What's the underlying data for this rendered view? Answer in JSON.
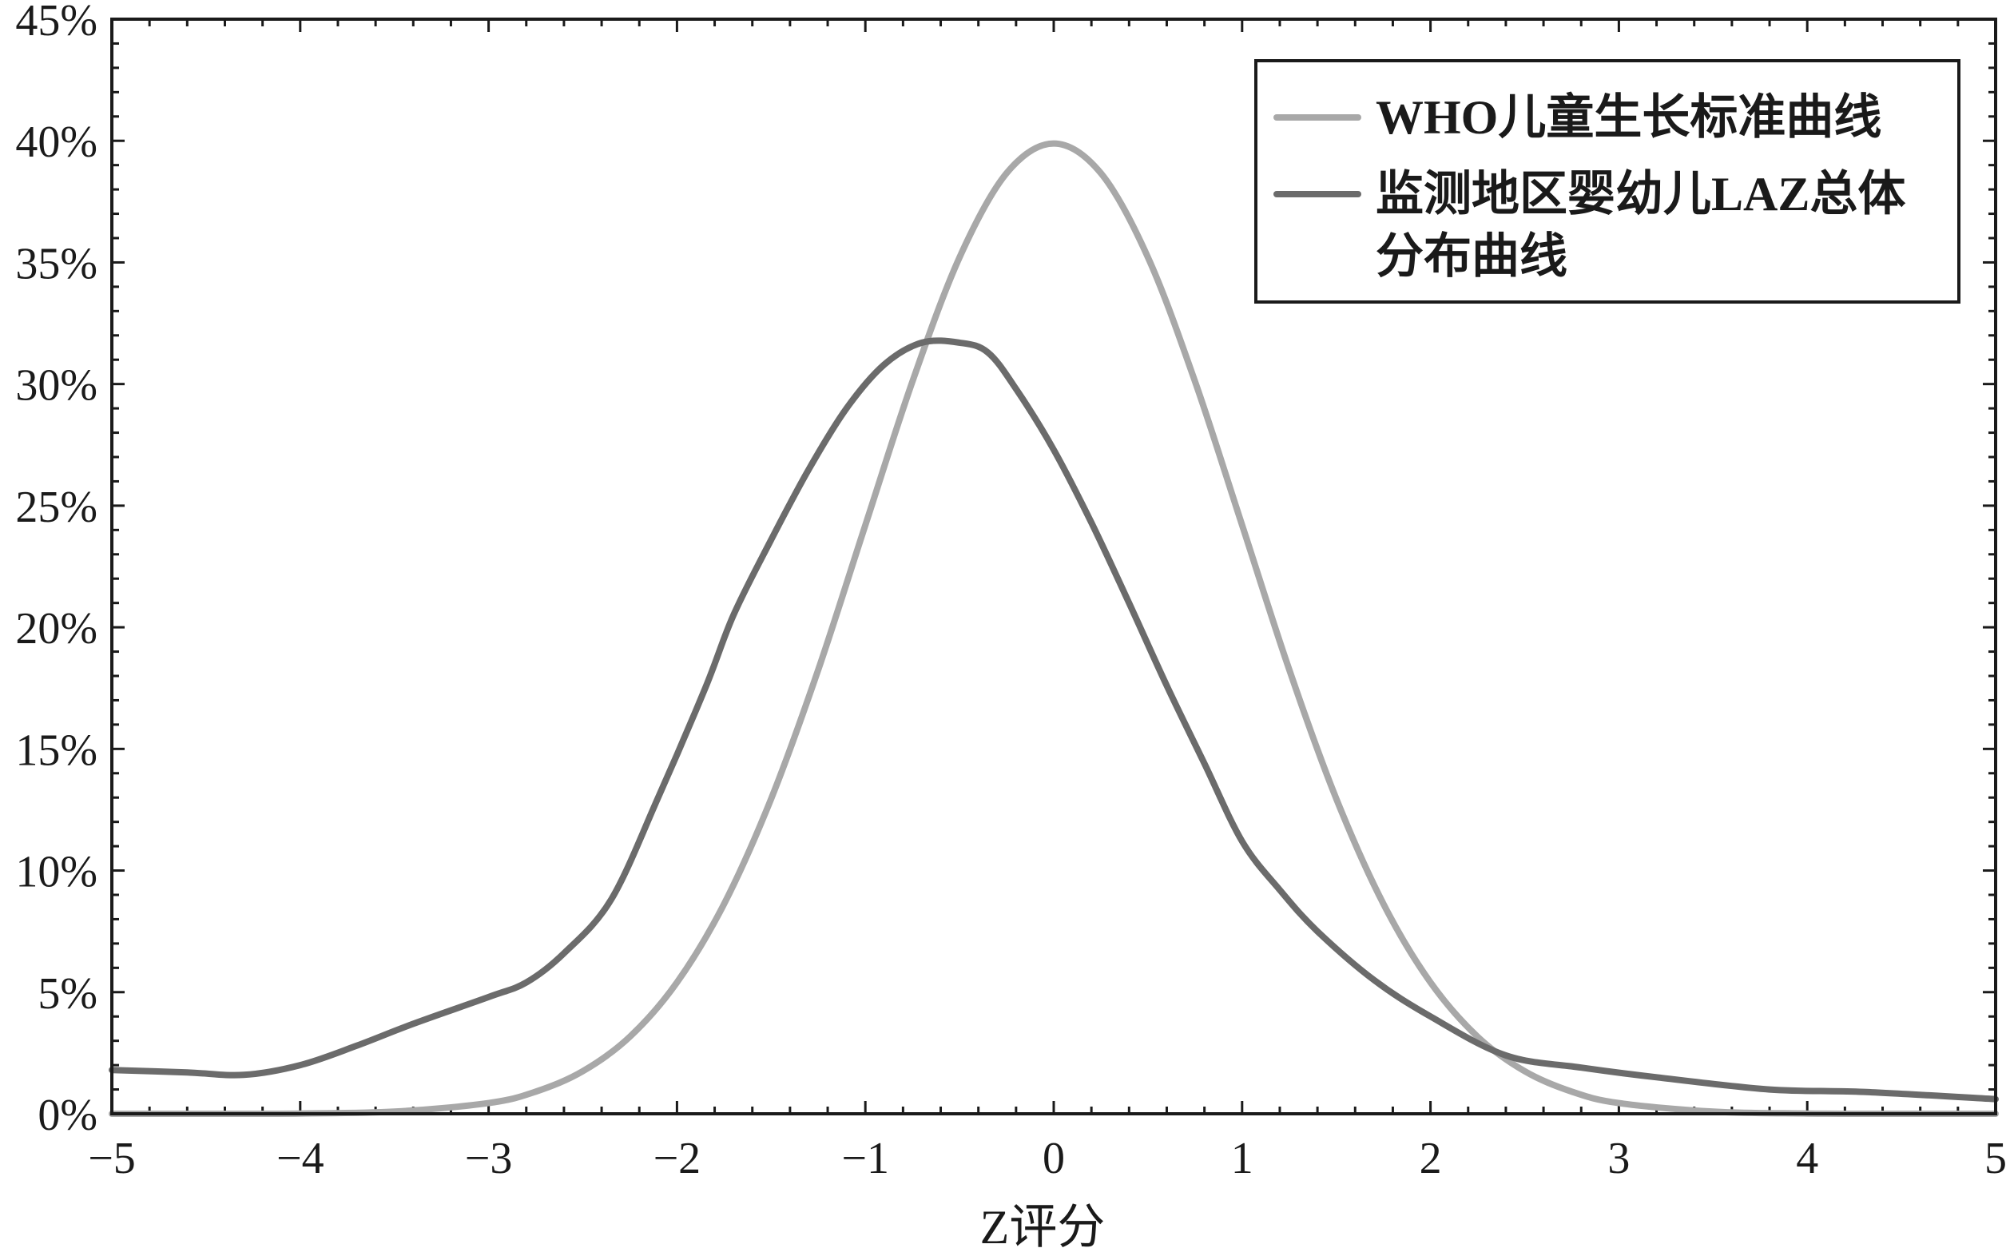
{
  "chart_data": {
    "type": "line",
    "title": "",
    "xlabel": "Z评分",
    "ylabel": "",
    "xlim": [
      -5,
      5
    ],
    "ylim": [
      0,
      45
    ],
    "x_ticks": [
      -5,
      -4,
      -3,
      -2,
      -1,
      0,
      1,
      2,
      3,
      4,
      5
    ],
    "x_tick_labels": [
      "−5",
      "−4",
      "−3",
      "−2",
      "−1",
      "0",
      "1",
      "2",
      "3",
      "4",
      "5"
    ],
    "y_ticks": [
      0,
      5,
      10,
      15,
      20,
      25,
      30,
      35,
      40,
      45
    ],
    "y_tick_labels": [
      "0%",
      "5%",
      "10%",
      "15%",
      "20%",
      "25%",
      "30%",
      "35%",
      "40%",
      "45%"
    ],
    "grid": false,
    "legend_position": "top-right",
    "series": [
      {
        "name": "WHO儿童生长标准曲线",
        "color": "#a8a8a8",
        "x": [
          -5,
          -4.5,
          -4,
          -3.5,
          -3,
          -2.75,
          -2.5,
          -2.25,
          -2,
          -1.75,
          -1.5,
          -1.25,
          -1,
          -0.75,
          -0.5,
          -0.25,
          0,
          0.25,
          0.5,
          0.75,
          1,
          1.25,
          1.5,
          1.75,
          2,
          2.25,
          2.5,
          2.75,
          3,
          3.5,
          4,
          4.5,
          5
        ],
        "y": [
          0.0,
          0.0,
          0.01,
          0.09,
          0.44,
          0.91,
          1.75,
          3.17,
          5.4,
          8.63,
          12.95,
          18.26,
          24.2,
          30.11,
          35.21,
          38.67,
          39.89,
          38.67,
          35.21,
          30.11,
          24.2,
          18.26,
          12.95,
          8.63,
          5.4,
          3.17,
          1.75,
          0.91,
          0.44,
          0.09,
          0.01,
          0.0,
          0.0
        ]
      },
      {
        "name": "监测地区婴幼儿LAZ总体分布曲线",
        "color": "#6b6b6b",
        "x": [
          -5,
          -4.6,
          -4.3,
          -4,
          -3.7,
          -3.4,
          -3,
          -2.8,
          -2.6,
          -2.35,
          -2.1,
          -1.85,
          -1.7,
          -1.5,
          -1.3,
          -1.1,
          -0.9,
          -0.7,
          -0.5,
          -0.35,
          -0.2,
          0,
          0.2,
          0.4,
          0.6,
          0.8,
          1.0,
          1.2,
          1.4,
          1.7,
          2.0,
          2.4,
          2.8,
          3.2,
          3.8,
          4.3,
          5
        ],
        "y": [
          1.8,
          1.7,
          1.6,
          2.0,
          2.8,
          3.7,
          4.8,
          5.4,
          6.6,
          8.8,
          13.0,
          17.5,
          20.5,
          23.6,
          26.5,
          29.0,
          30.8,
          31.7,
          31.7,
          31.3,
          29.8,
          27.3,
          24.3,
          21.0,
          17.6,
          14.4,
          11.2,
          9.2,
          7.5,
          5.5,
          4.0,
          2.4,
          1.9,
          1.5,
          1.0,
          0.9,
          0.6
        ]
      }
    ]
  }
}
